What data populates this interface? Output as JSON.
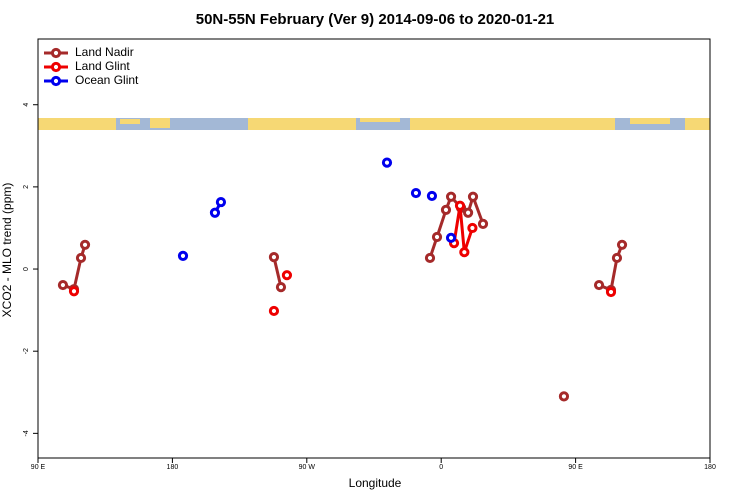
{
  "chart_data": {
    "type": "line",
    "title": "50N-55N February (Ver 9)   2014-09-06 to 2020-01-21",
    "xlabel": "Longitude",
    "ylabel": "XCO2 - MLO trend (ppm)",
    "xlim": [
      90,
      540
    ],
    "ylim": [
      -4.6,
      5.6
    ],
    "xticks": [
      {
        "value": 90,
        "label": "90 E"
      },
      180,
      {
        "value": 270,
        "label": "90 W"
      },
      {
        "value": 360,
        "label": "0"
      },
      {
        "value": 450,
        "label": "90 E"
      },
      {
        "value": 540,
        "label": "180"
      }
    ],
    "yticks": [
      -4,
      -2,
      0,
      2,
      4
    ],
    "legend": "top-left",
    "grid": false,
    "series": [
      {
        "name": "Land Nadir",
        "color": "#a52a2a",
        "x": [
          106.7,
          114.1,
          118.8,
          121.5,
          null,
          248.0,
          252.7,
          null,
          352.5,
          357.2,
          363.2,
          366.6,
          373.3,
          378.0,
          381.3,
          388.0,
          null,
          442.2,
          null,
          465.7,
          473.7,
          477.7,
          481.1
        ],
        "values": [
          -0.39,
          -0.49,
          0.27,
          0.59,
          null,
          0.29,
          -0.44,
          null,
          0.27,
          0.78,
          1.44,
          1.76,
          1.49,
          1.37,
          1.76,
          1.1,
          null,
          -3.1,
          null,
          -0.39,
          -0.51,
          0.27,
          0.59
        ]
      },
      {
        "name": "Land Glint",
        "color": "#ee0000",
        "x": [
          114.1,
          null,
          248.0,
          null,
          256.7,
          null,
          368.6,
          372.6,
          375.5,
          380.9,
          null,
          473.7
        ],
        "values": [
          -0.54,
          null,
          -1.02,
          null,
          -0.15,
          null,
          0.63,
          1.54,
          0.41,
          1.0,
          null,
          -0.56
        ]
      },
      {
        "name": "Ocean Glint",
        "color": "#0000ee",
        "x": [
          187.1,
          null,
          208.5,
          212.5,
          null,
          323.7,
          null,
          343.1,
          null,
          353.8,
          null,
          366.6
        ],
        "values": [
          0.32,
          null,
          1.37,
          1.63,
          null,
          2.59,
          null,
          1.85,
          null,
          1.78,
          null,
          0.76
        ]
      }
    ]
  }
}
